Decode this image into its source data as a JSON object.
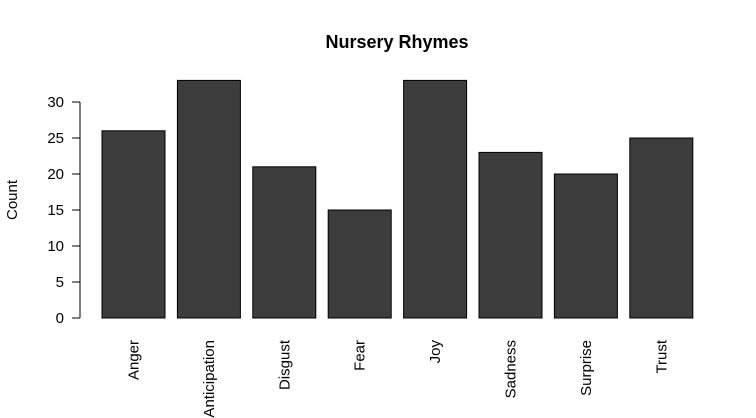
{
  "chart_data": {
    "type": "bar",
    "title": "Nursery Rhymes",
    "xlabel": "",
    "ylabel": "Count",
    "categories": [
      "Anger",
      "Anticipation",
      "Disgust",
      "Fear",
      "Joy",
      "Sadness",
      "Surprise",
      "Trust"
    ],
    "values": [
      26,
      33,
      21,
      15,
      33,
      23,
      20,
      25
    ],
    "yticks": [
      0,
      5,
      10,
      15,
      20,
      25,
      30
    ],
    "ylim": [
      0,
      33
    ],
    "grid": false,
    "legend": "none",
    "colors": {
      "bar_fill": "#3d3d3d",
      "bar_stroke": "#000000",
      "axis": "#000000"
    }
  }
}
